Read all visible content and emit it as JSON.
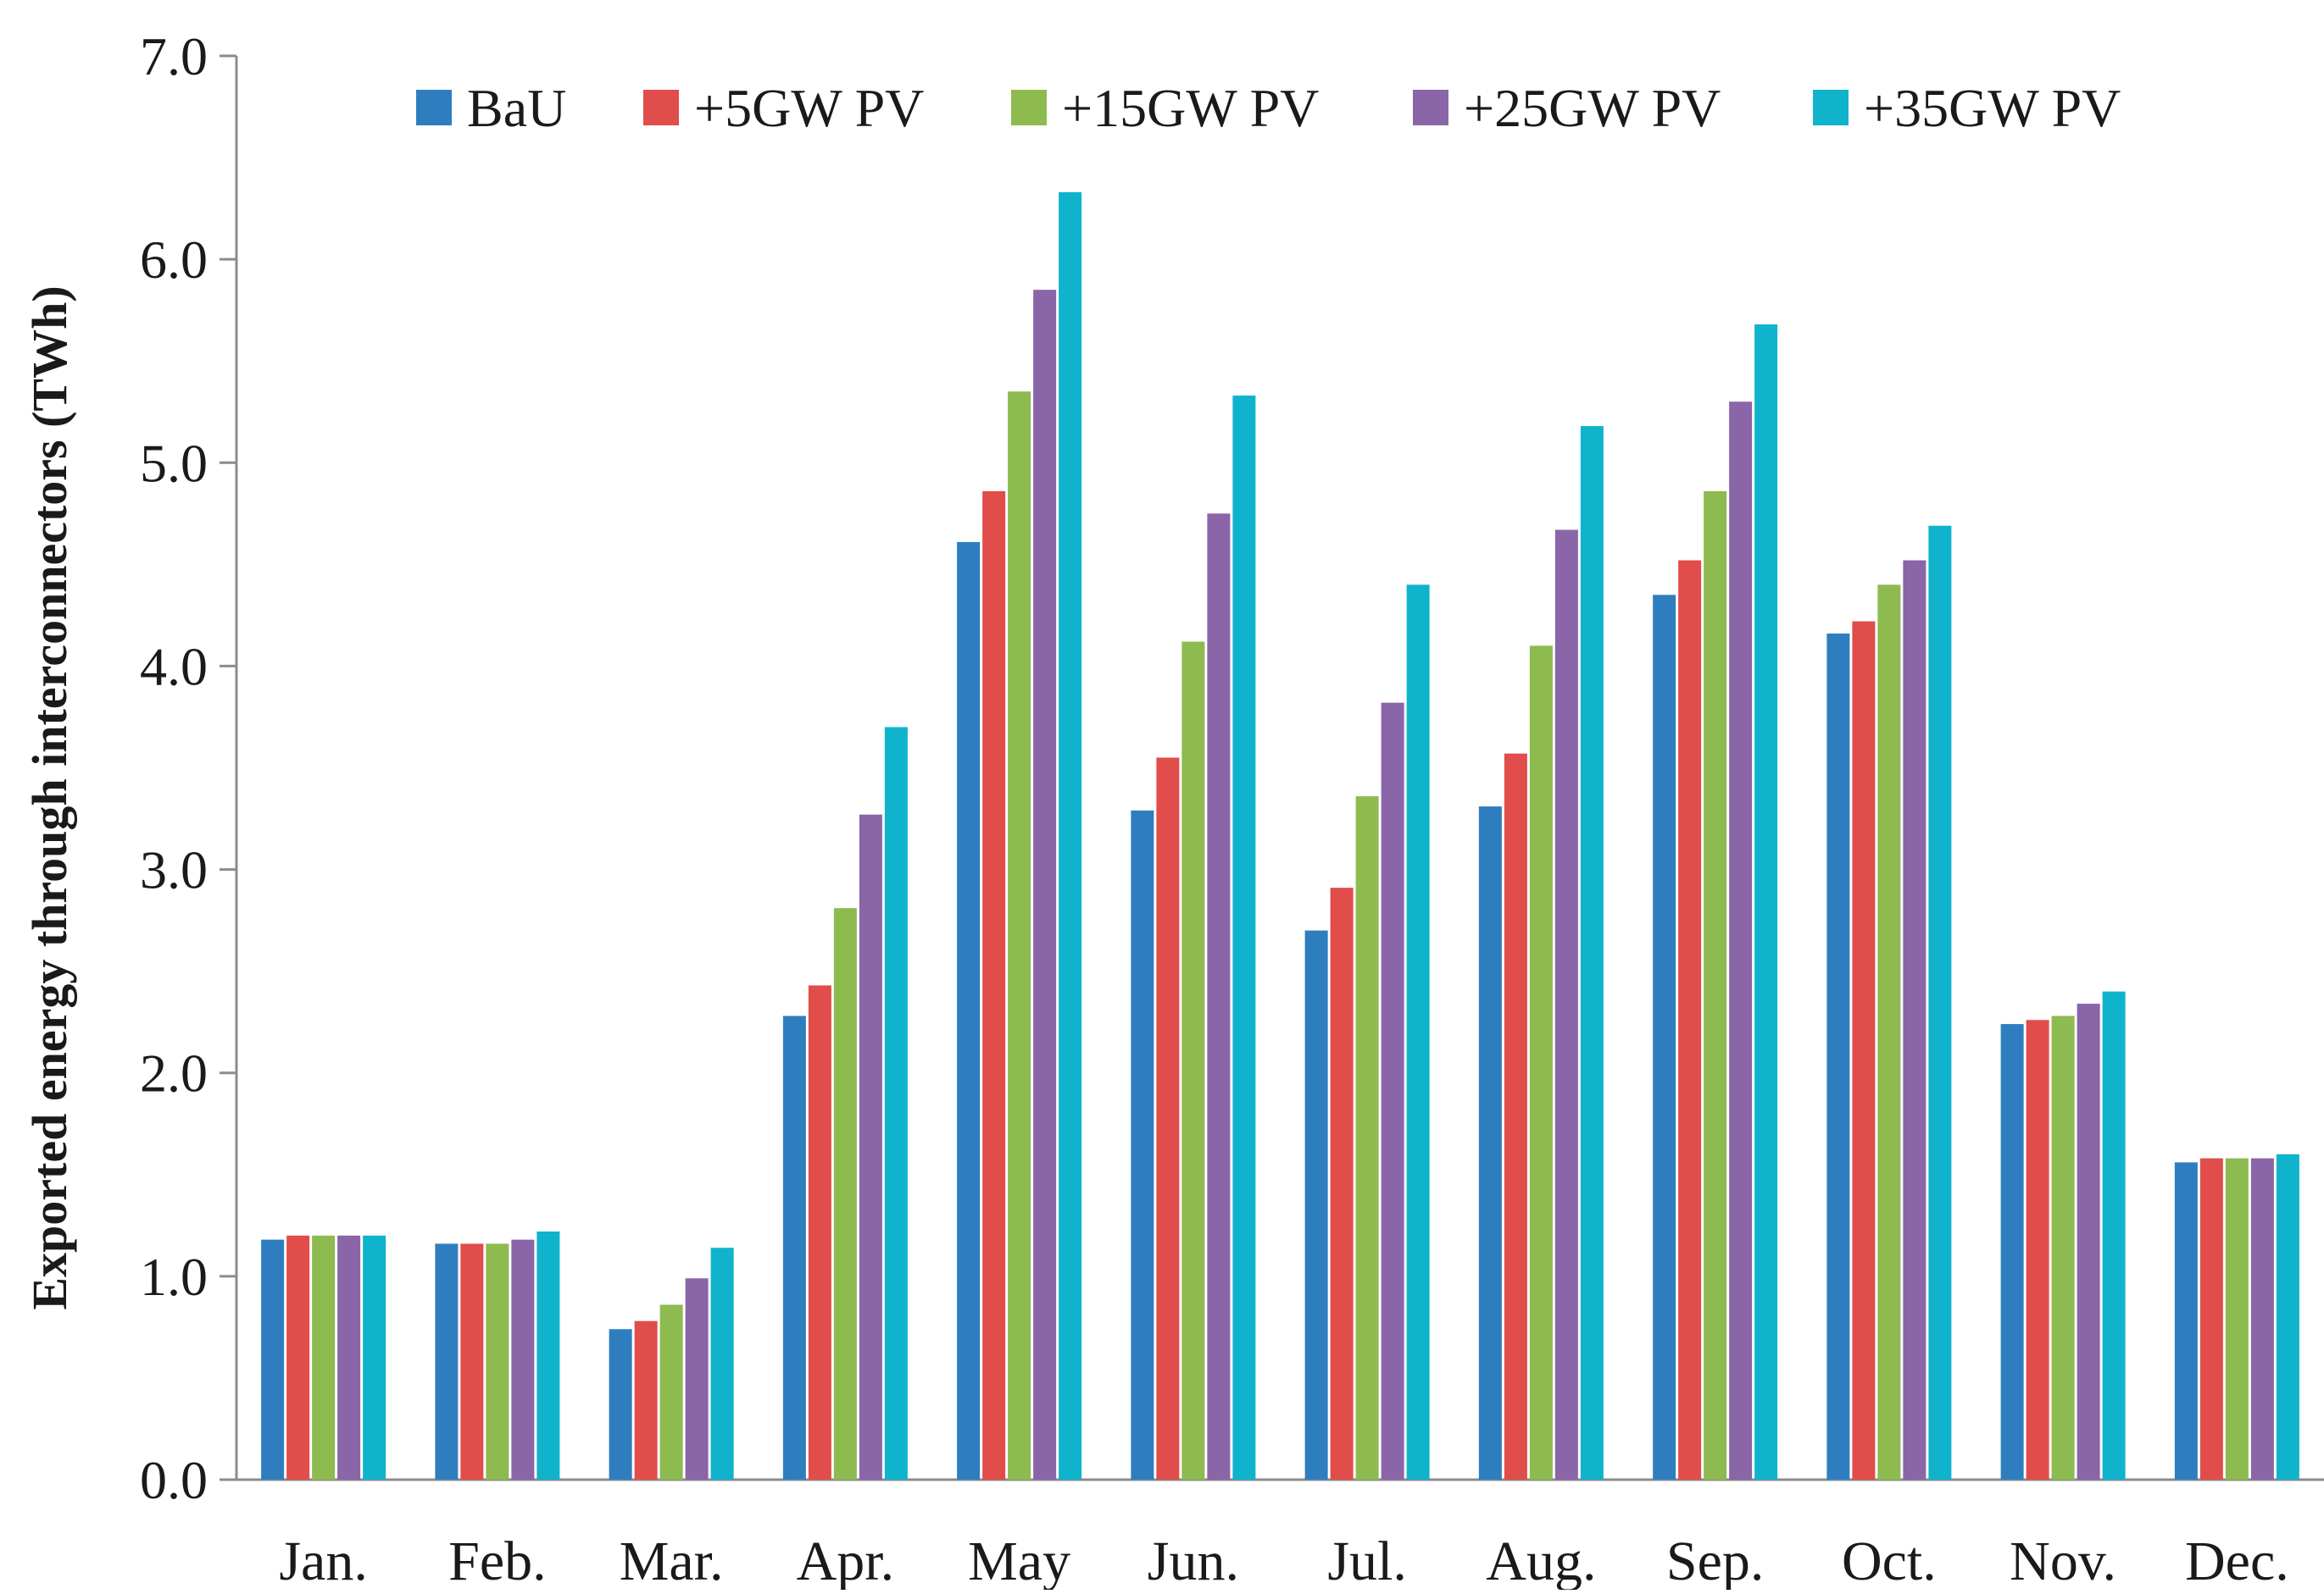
{
  "chart_data": {
    "type": "bar",
    "title": "",
    "xlabel": "",
    "ylabel": "Exported energy through interconnectors (TWh)",
    "ylim": [
      0,
      7
    ],
    "y_ticks": [
      "0.0",
      "1.0",
      "2.0",
      "3.0",
      "4.0",
      "5.0",
      "6.0",
      "7.0"
    ],
    "grid": false,
    "legend_position": "top",
    "categories": [
      "Jan.",
      "Feb.",
      "Mar.",
      "Apr.",
      "May",
      "Jun.",
      "Jul.",
      "Aug.",
      "Sep.",
      "Oct.",
      "Nov.",
      "Dec."
    ],
    "series": [
      {
        "name": "BaU",
        "color": "#2e7ebf",
        "values": [
          1.18,
          1.16,
          0.74,
          2.28,
          4.61,
          3.29,
          2.7,
          3.31,
          4.35,
          4.16,
          2.24,
          1.56
        ]
      },
      {
        "name": "+5GW PV",
        "color": "#e04d4a",
        "values": [
          1.2,
          1.16,
          0.78,
          2.43,
          4.86,
          3.55,
          2.91,
          3.57,
          4.52,
          4.22,
          2.26,
          1.58
        ]
      },
      {
        "name": "+15GW PV",
        "color": "#8dbb4f",
        "values": [
          1.2,
          1.16,
          0.86,
          2.81,
          5.35,
          4.12,
          3.36,
          4.1,
          4.86,
          4.4,
          2.28,
          1.58
        ]
      },
      {
        "name": "+25GW PV",
        "color": "#8a65a8",
        "values": [
          1.2,
          1.18,
          0.99,
          3.27,
          5.85,
          4.75,
          3.82,
          4.67,
          5.3,
          4.52,
          2.34,
          1.58
        ]
      },
      {
        "name": "+35GW PV",
        "color": "#10b3cc",
        "values": [
          1.2,
          1.22,
          1.14,
          3.7,
          6.33,
          5.33,
          4.4,
          5.18,
          5.68,
          4.69,
          2.4,
          1.6
        ]
      }
    ]
  }
}
